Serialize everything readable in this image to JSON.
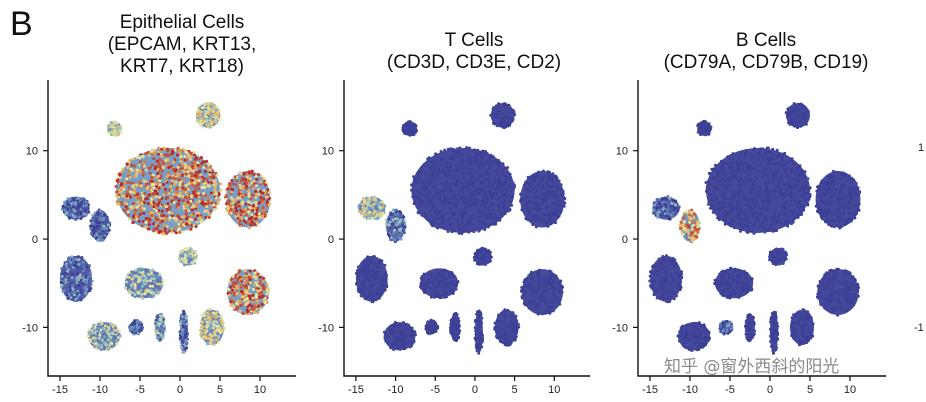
{
  "figure": {
    "panel_label": "B",
    "watermark": "知乎 @窗外西斜的阳光",
    "cut_tick_labels": [
      "1",
      "-1"
    ]
  },
  "chart_data": [
    {
      "type": "scatter",
      "title_lines": [
        "Epithelial Cells",
        "(EPCAM, KRT13,",
        "KRT7, KRT18)"
      ],
      "xlabel": "",
      "ylabel": "",
      "xlim": [
        -16.5,
        14.5
      ],
      "ylim": [
        -15.5,
        18
      ],
      "xticks": [
        -15,
        -10,
        -5,
        0,
        5,
        10
      ],
      "yticks": [
        10,
        0,
        -10
      ],
      "grid": false,
      "clusters": [
        {
          "id": "c01",
          "cx": -1.5,
          "cy": 5.5,
          "rx": 6.5,
          "ry": 4.8,
          "level": 0.85
        },
        {
          "id": "c02",
          "cx": 8.5,
          "cy": 4.5,
          "rx": 2.8,
          "ry": 3.2,
          "level": 0.85
        },
        {
          "id": "c03",
          "cx": 8.5,
          "cy": -6.0,
          "rx": 2.6,
          "ry": 2.6,
          "level": 0.85
        },
        {
          "id": "c04",
          "cx": 3.5,
          "cy": 14.0,
          "rx": 1.5,
          "ry": 1.4,
          "level": 0.6
        },
        {
          "id": "c05",
          "cx": -8.2,
          "cy": 12.5,
          "rx": 0.9,
          "ry": 0.8,
          "level": 0.55
        },
        {
          "id": "c06",
          "cx": -13.0,
          "cy": 3.5,
          "rx": 1.7,
          "ry": 1.3,
          "level": 0.12
        },
        {
          "id": "c07",
          "cx": -10.0,
          "cy": 1.5,
          "rx": 1.2,
          "ry": 1.8,
          "level": 0.12
        },
        {
          "id": "c08",
          "cx": -13.0,
          "cy": -4.5,
          "rx": 2.0,
          "ry": 2.6,
          "level": 0.15
        },
        {
          "id": "c09",
          "cx": -4.5,
          "cy": -5.0,
          "rx": 2.4,
          "ry": 1.7,
          "level": 0.45
        },
        {
          "id": "c10",
          "cx": 1.0,
          "cy": -2.0,
          "rx": 1.1,
          "ry": 1.0,
          "level": 0.5
        },
        {
          "id": "c11",
          "cx": -9.5,
          "cy": -11.0,
          "rx": 2.0,
          "ry": 1.6,
          "level": 0.45
        },
        {
          "id": "c12",
          "cx": -5.5,
          "cy": -10.0,
          "rx": 0.8,
          "ry": 0.8,
          "level": 0.1
        },
        {
          "id": "c13",
          "cx": -2.5,
          "cy": -10.0,
          "rx": 0.6,
          "ry": 1.6,
          "level": 0.35
        },
        {
          "id": "c14",
          "cx": 0.5,
          "cy": -10.5,
          "rx": 0.5,
          "ry": 2.4,
          "level": 0.15
        },
        {
          "id": "c15",
          "cx": 4.0,
          "cy": -10.0,
          "rx": 1.5,
          "ry": 2.0,
          "level": 0.6
        }
      ]
    },
    {
      "type": "scatter",
      "title_lines": [
        "T Cells",
        "(CD3D, CD3E, CD2)"
      ],
      "xlabel": "",
      "ylabel": "",
      "xlim": [
        -16.5,
        14.5
      ],
      "ylim": [
        -15.5,
        18
      ],
      "xticks": [
        -15,
        -10,
        -5,
        0,
        5,
        10
      ],
      "yticks": [
        10,
        0,
        -10
      ],
      "grid": false,
      "clusters": [
        {
          "id": "c01",
          "cx": -1.5,
          "cy": 5.5,
          "rx": 6.5,
          "ry": 4.8,
          "level": 0.0
        },
        {
          "id": "c02",
          "cx": 8.5,
          "cy": 4.5,
          "rx": 2.8,
          "ry": 3.2,
          "level": 0.0
        },
        {
          "id": "c03",
          "cx": 8.5,
          "cy": -6.0,
          "rx": 2.6,
          "ry": 2.6,
          "level": 0.0
        },
        {
          "id": "c04",
          "cx": 3.5,
          "cy": 14.0,
          "rx": 1.5,
          "ry": 1.4,
          "level": 0.0
        },
        {
          "id": "c05",
          "cx": -8.2,
          "cy": 12.5,
          "rx": 0.9,
          "ry": 0.8,
          "level": 0.0
        },
        {
          "id": "c06",
          "cx": -13.0,
          "cy": 3.5,
          "rx": 1.7,
          "ry": 1.3,
          "level": 0.55
        },
        {
          "id": "c07",
          "cx": -10.0,
          "cy": 1.5,
          "rx": 1.2,
          "ry": 1.8,
          "level": 0.2
        },
        {
          "id": "c08",
          "cx": -13.0,
          "cy": -4.5,
          "rx": 2.0,
          "ry": 2.6,
          "level": 0.0
        },
        {
          "id": "c09",
          "cx": -4.5,
          "cy": -5.0,
          "rx": 2.4,
          "ry": 1.7,
          "level": 0.0
        },
        {
          "id": "c10",
          "cx": 1.0,
          "cy": -2.0,
          "rx": 1.1,
          "ry": 1.0,
          "level": 0.0
        },
        {
          "id": "c11",
          "cx": -9.5,
          "cy": -11.0,
          "rx": 2.0,
          "ry": 1.6,
          "level": 0.0
        },
        {
          "id": "c12",
          "cx": -5.5,
          "cy": -10.0,
          "rx": 0.8,
          "ry": 0.8,
          "level": 0.0
        },
        {
          "id": "c13",
          "cx": -2.5,
          "cy": -10.0,
          "rx": 0.6,
          "ry": 1.6,
          "level": 0.0
        },
        {
          "id": "c14",
          "cx": 0.5,
          "cy": -10.5,
          "rx": 0.5,
          "ry": 2.4,
          "level": 0.0
        },
        {
          "id": "c15",
          "cx": 4.0,
          "cy": -10.0,
          "rx": 1.5,
          "ry": 2.0,
          "level": 0.0
        }
      ]
    },
    {
      "type": "scatter",
      "title_lines": [
        "B Cells",
        "(CD79A, CD79B, CD19)"
      ],
      "xlabel": "",
      "ylabel": "",
      "xlim": [
        -16.5,
        14.5
      ],
      "ylim": [
        -15.5,
        18
      ],
      "xticks": [
        -15,
        -10,
        -5,
        0,
        5,
        10
      ],
      "yticks": [
        10,
        0,
        -10
      ],
      "grid": false,
      "clusters": [
        {
          "id": "c01",
          "cx": -1.5,
          "cy": 5.5,
          "rx": 6.5,
          "ry": 4.8,
          "level": 0.0
        },
        {
          "id": "c02",
          "cx": 8.5,
          "cy": 4.5,
          "rx": 2.8,
          "ry": 3.2,
          "level": 0.0
        },
        {
          "id": "c03",
          "cx": 8.5,
          "cy": -6.0,
          "rx": 2.6,
          "ry": 2.6,
          "level": 0.0
        },
        {
          "id": "c04",
          "cx": 3.5,
          "cy": 14.0,
          "rx": 1.5,
          "ry": 1.4,
          "level": 0.0
        },
        {
          "id": "c05",
          "cx": -8.2,
          "cy": 12.5,
          "rx": 0.9,
          "ry": 0.8,
          "level": 0.0
        },
        {
          "id": "c06",
          "cx": -13.0,
          "cy": 3.5,
          "rx": 1.7,
          "ry": 1.3,
          "level": 0.15
        },
        {
          "id": "c07",
          "cx": -10.0,
          "cy": 1.5,
          "rx": 1.2,
          "ry": 1.8,
          "level": 0.7
        },
        {
          "id": "c08",
          "cx": -13.0,
          "cy": -4.5,
          "rx": 2.0,
          "ry": 2.6,
          "level": 0.0
        },
        {
          "id": "c09",
          "cx": -4.5,
          "cy": -5.0,
          "rx": 2.4,
          "ry": 1.7,
          "level": 0.0
        },
        {
          "id": "c10",
          "cx": 1.0,
          "cy": -2.0,
          "rx": 1.1,
          "ry": 1.0,
          "level": 0.0
        },
        {
          "id": "c11",
          "cx": -9.5,
          "cy": -11.0,
          "rx": 2.0,
          "ry": 1.6,
          "level": 0.0
        },
        {
          "id": "c12",
          "cx": -5.5,
          "cy": -10.0,
          "rx": 0.8,
          "ry": 0.8,
          "level": 0.1
        },
        {
          "id": "c13",
          "cx": -2.5,
          "cy": -10.0,
          "rx": 0.6,
          "ry": 1.6,
          "level": 0.0
        },
        {
          "id": "c14",
          "cx": 0.5,
          "cy": -10.5,
          "rx": 0.5,
          "ry": 2.4,
          "level": 0.0
        },
        {
          "id": "c15",
          "cx": 4.0,
          "cy": -10.0,
          "rx": 1.5,
          "ry": 2.0,
          "level": 0.0
        }
      ]
    }
  ],
  "colors": {
    "low": "#3d3f96",
    "mid_low": "#6f9cc4",
    "mid": "#e6eea8",
    "high": "#e9a653",
    "max": "#b8262a",
    "axis": "#111111"
  }
}
